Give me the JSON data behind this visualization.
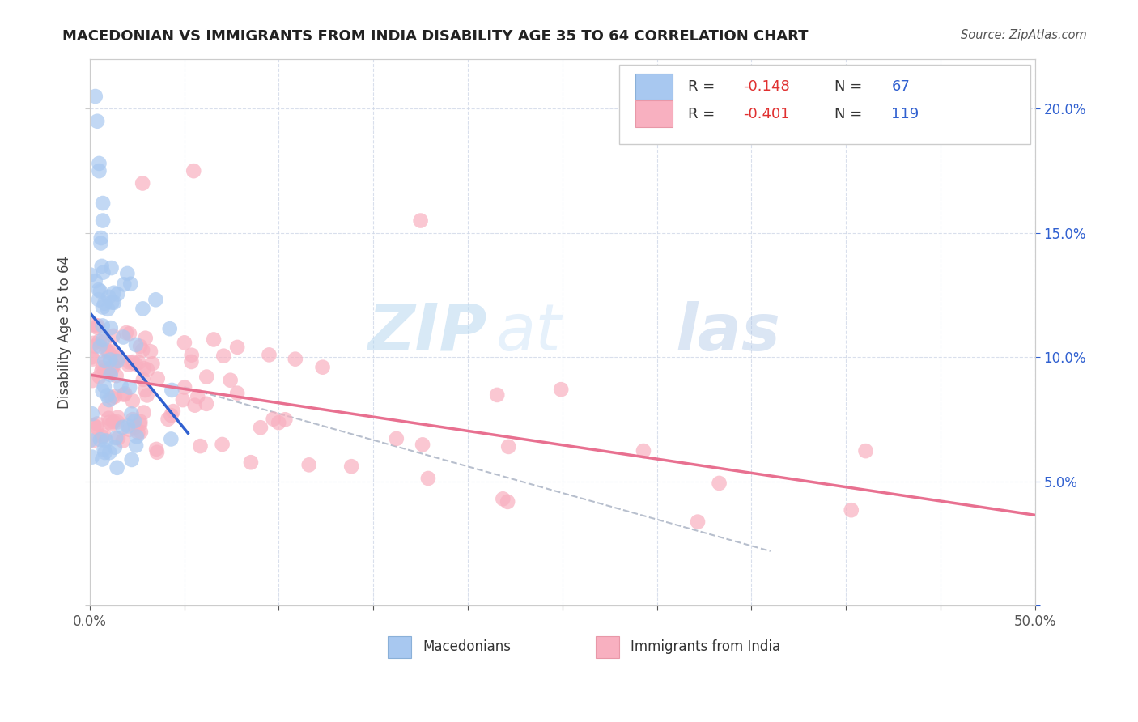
{
  "title": "MACEDONIAN VS IMMIGRANTS FROM INDIA DISABILITY AGE 35 TO 64 CORRELATION CHART",
  "source": "Source: ZipAtlas.com",
  "ylabel": "Disability Age 35 to 64",
  "xlim": [
    0.0,
    0.5
  ],
  "ylim": [
    0.0,
    0.22
  ],
  "xtick_positions": [
    0.0,
    0.05,
    0.1,
    0.15,
    0.2,
    0.25,
    0.3,
    0.35,
    0.4,
    0.45,
    0.5
  ],
  "xticklabels": [
    "0.0%",
    "",
    "",
    "",
    "",
    "",
    "",
    "",
    "",
    "",
    "50.0%"
  ],
  "ytick_positions": [
    0.0,
    0.05,
    0.1,
    0.15,
    0.2
  ],
  "ytick_right_labels": [
    "",
    "5.0%",
    "10.0%",
    "15.0%",
    "20.0%"
  ],
  "legend_label1": "Macedonians",
  "legend_label2": "Immigrants from India",
  "blue_color": "#a8c8f0",
  "pink_color": "#f8b0c0",
  "blue_line_color": "#3060d0",
  "pink_line_color": "#e87090",
  "dashed_line_color": "#b0b8c8",
  "r1": "-0.148",
  "n1": "67",
  "r2": "-0.401",
  "n2": "119",
  "red_text_color": "#e03030",
  "blue_text_color": "#3060d0",
  "watermark1": "ZIP",
  "watermark2": "at",
  "watermark3": "las",
  "mac_seed": 42,
  "ind_seed": 99
}
